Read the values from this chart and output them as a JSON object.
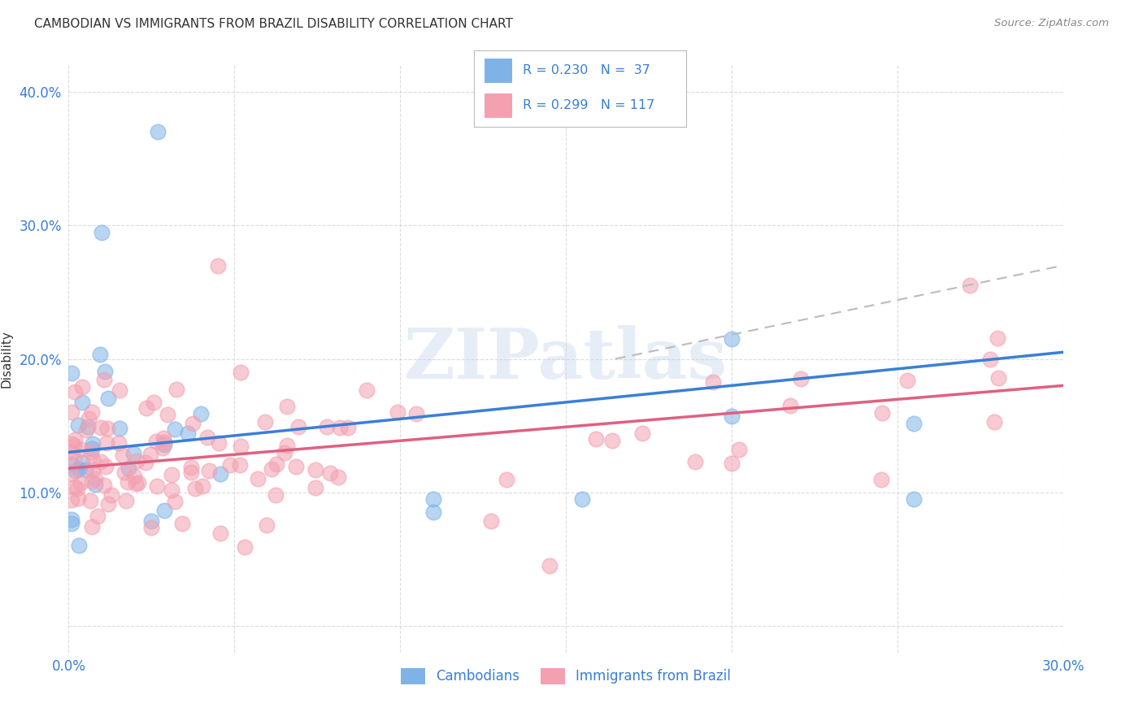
{
  "title": "CAMBODIAN VS IMMIGRANTS FROM BRAZIL DISABILITY CORRELATION CHART",
  "source": "Source: ZipAtlas.com",
  "ylabel": "Disability",
  "xlim": [
    0.0,
    0.3
  ],
  "ylim": [
    -0.02,
    0.42
  ],
  "xticks": [
    0.0,
    0.05,
    0.1,
    0.15,
    0.2,
    0.25,
    0.3
  ],
  "xticklabels": [
    "0.0%",
    "",
    "",
    "",
    "",
    "",
    "30.0%"
  ],
  "yticks": [
    0.0,
    0.1,
    0.2,
    0.3,
    0.4
  ],
  "yticklabels": [
    "",
    "10.0%",
    "20.0%",
    "30.0%",
    "40.0%"
  ],
  "background_color": "#ffffff",
  "grid_color": "#cccccc",
  "blue_color": "#7fb3e8",
  "pink_color": "#f4a0b0",
  "blue_line_color": "#3a7fd5",
  "pink_line_color": "#e06080",
  "dashed_line_color": "#bbbbbb",
  "legend_text_color": "#3a7fd5",
  "watermark": "ZIPatlas",
  "title_color": "#333333",
  "ylabel_color": "#333333",
  "tick_label_color": "#3a7fd5",
  "source_color": "#888888",
  "blue_line_x": [
    0.0,
    0.3
  ],
  "blue_line_y": [
    0.13,
    0.205
  ],
  "pink_line_x": [
    0.0,
    0.3
  ],
  "pink_line_y": [
    0.118,
    0.18
  ],
  "dash_line_x": [
    0.165,
    0.3
  ],
  "dash_line_y": [
    0.2,
    0.27
  ],
  "legend_R1": "R = 0.230",
  "legend_N1": "N =  37",
  "legend_R2": "R = 0.299",
  "legend_N2": "N = 117"
}
